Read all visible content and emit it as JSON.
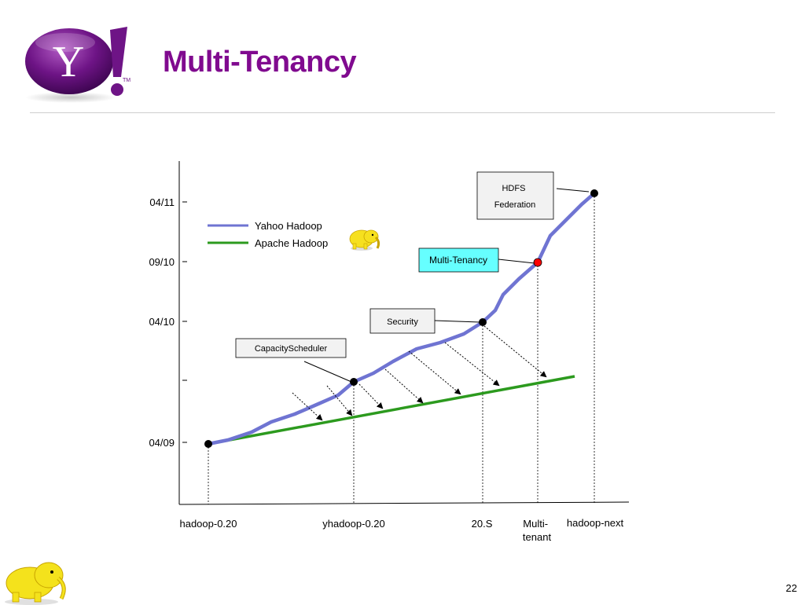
{
  "slide": {
    "title": "Multi-Tenancy",
    "page_number": "22",
    "logo_letter": "Y",
    "logo_trademark": "TM"
  },
  "legend": {
    "yahoo": "Yahoo Hadoop",
    "apache": "Apache Hadoop"
  },
  "y_ticks": [
    "04/11",
    "09/10",
    "04/10",
    "",
    "04/09"
  ],
  "x_ticks": [
    "hadoop-0.20",
    "yhadoop-0.20",
    "20.S",
    "Multi-\ntenant",
    "hadoop-next"
  ],
  "milestones": {
    "capacity": "CapacityScheduler",
    "security": "Security",
    "multitenancy": "Multi-Tenancy",
    "hdfs": "HDFS\nFederation"
  },
  "colors": {
    "title": "#800a8f",
    "yahoo_line": "#6f74d2",
    "apache_line": "#2c9a1e",
    "highlight_box": "#66ffff",
    "highlight_dot": "#ff0000"
  }
}
